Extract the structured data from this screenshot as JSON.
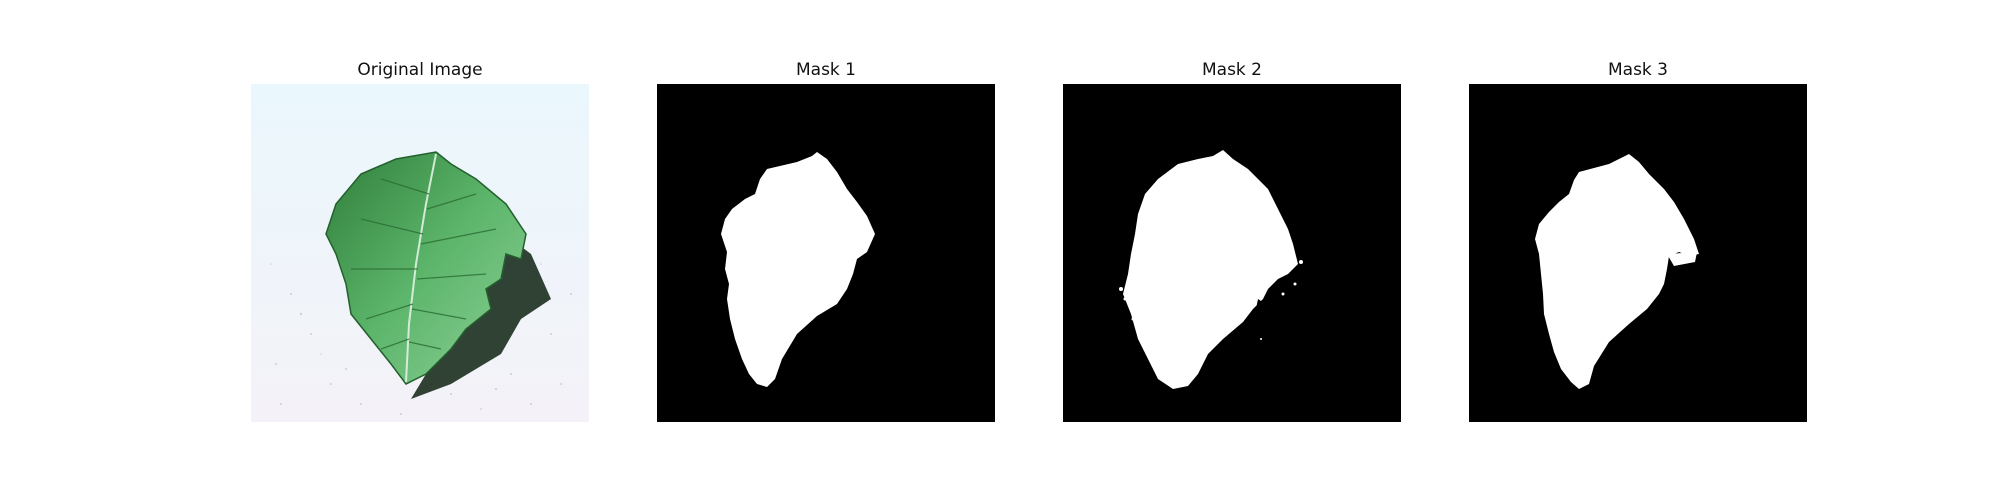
{
  "figure": {
    "panels": [
      {
        "id": "original",
        "title": "Original Image"
      },
      {
        "id": "mask1",
        "title": "Mask 1"
      },
      {
        "id": "mask2",
        "title": "Mask 2"
      },
      {
        "id": "mask3",
        "title": "Mask 3"
      }
    ]
  },
  "colors": {
    "background": "#ffffff",
    "mask_background": "#000000",
    "mask_foreground": "#ffffff",
    "leaf_green": "#3f9a4a",
    "image_background": "#eef6fb"
  }
}
